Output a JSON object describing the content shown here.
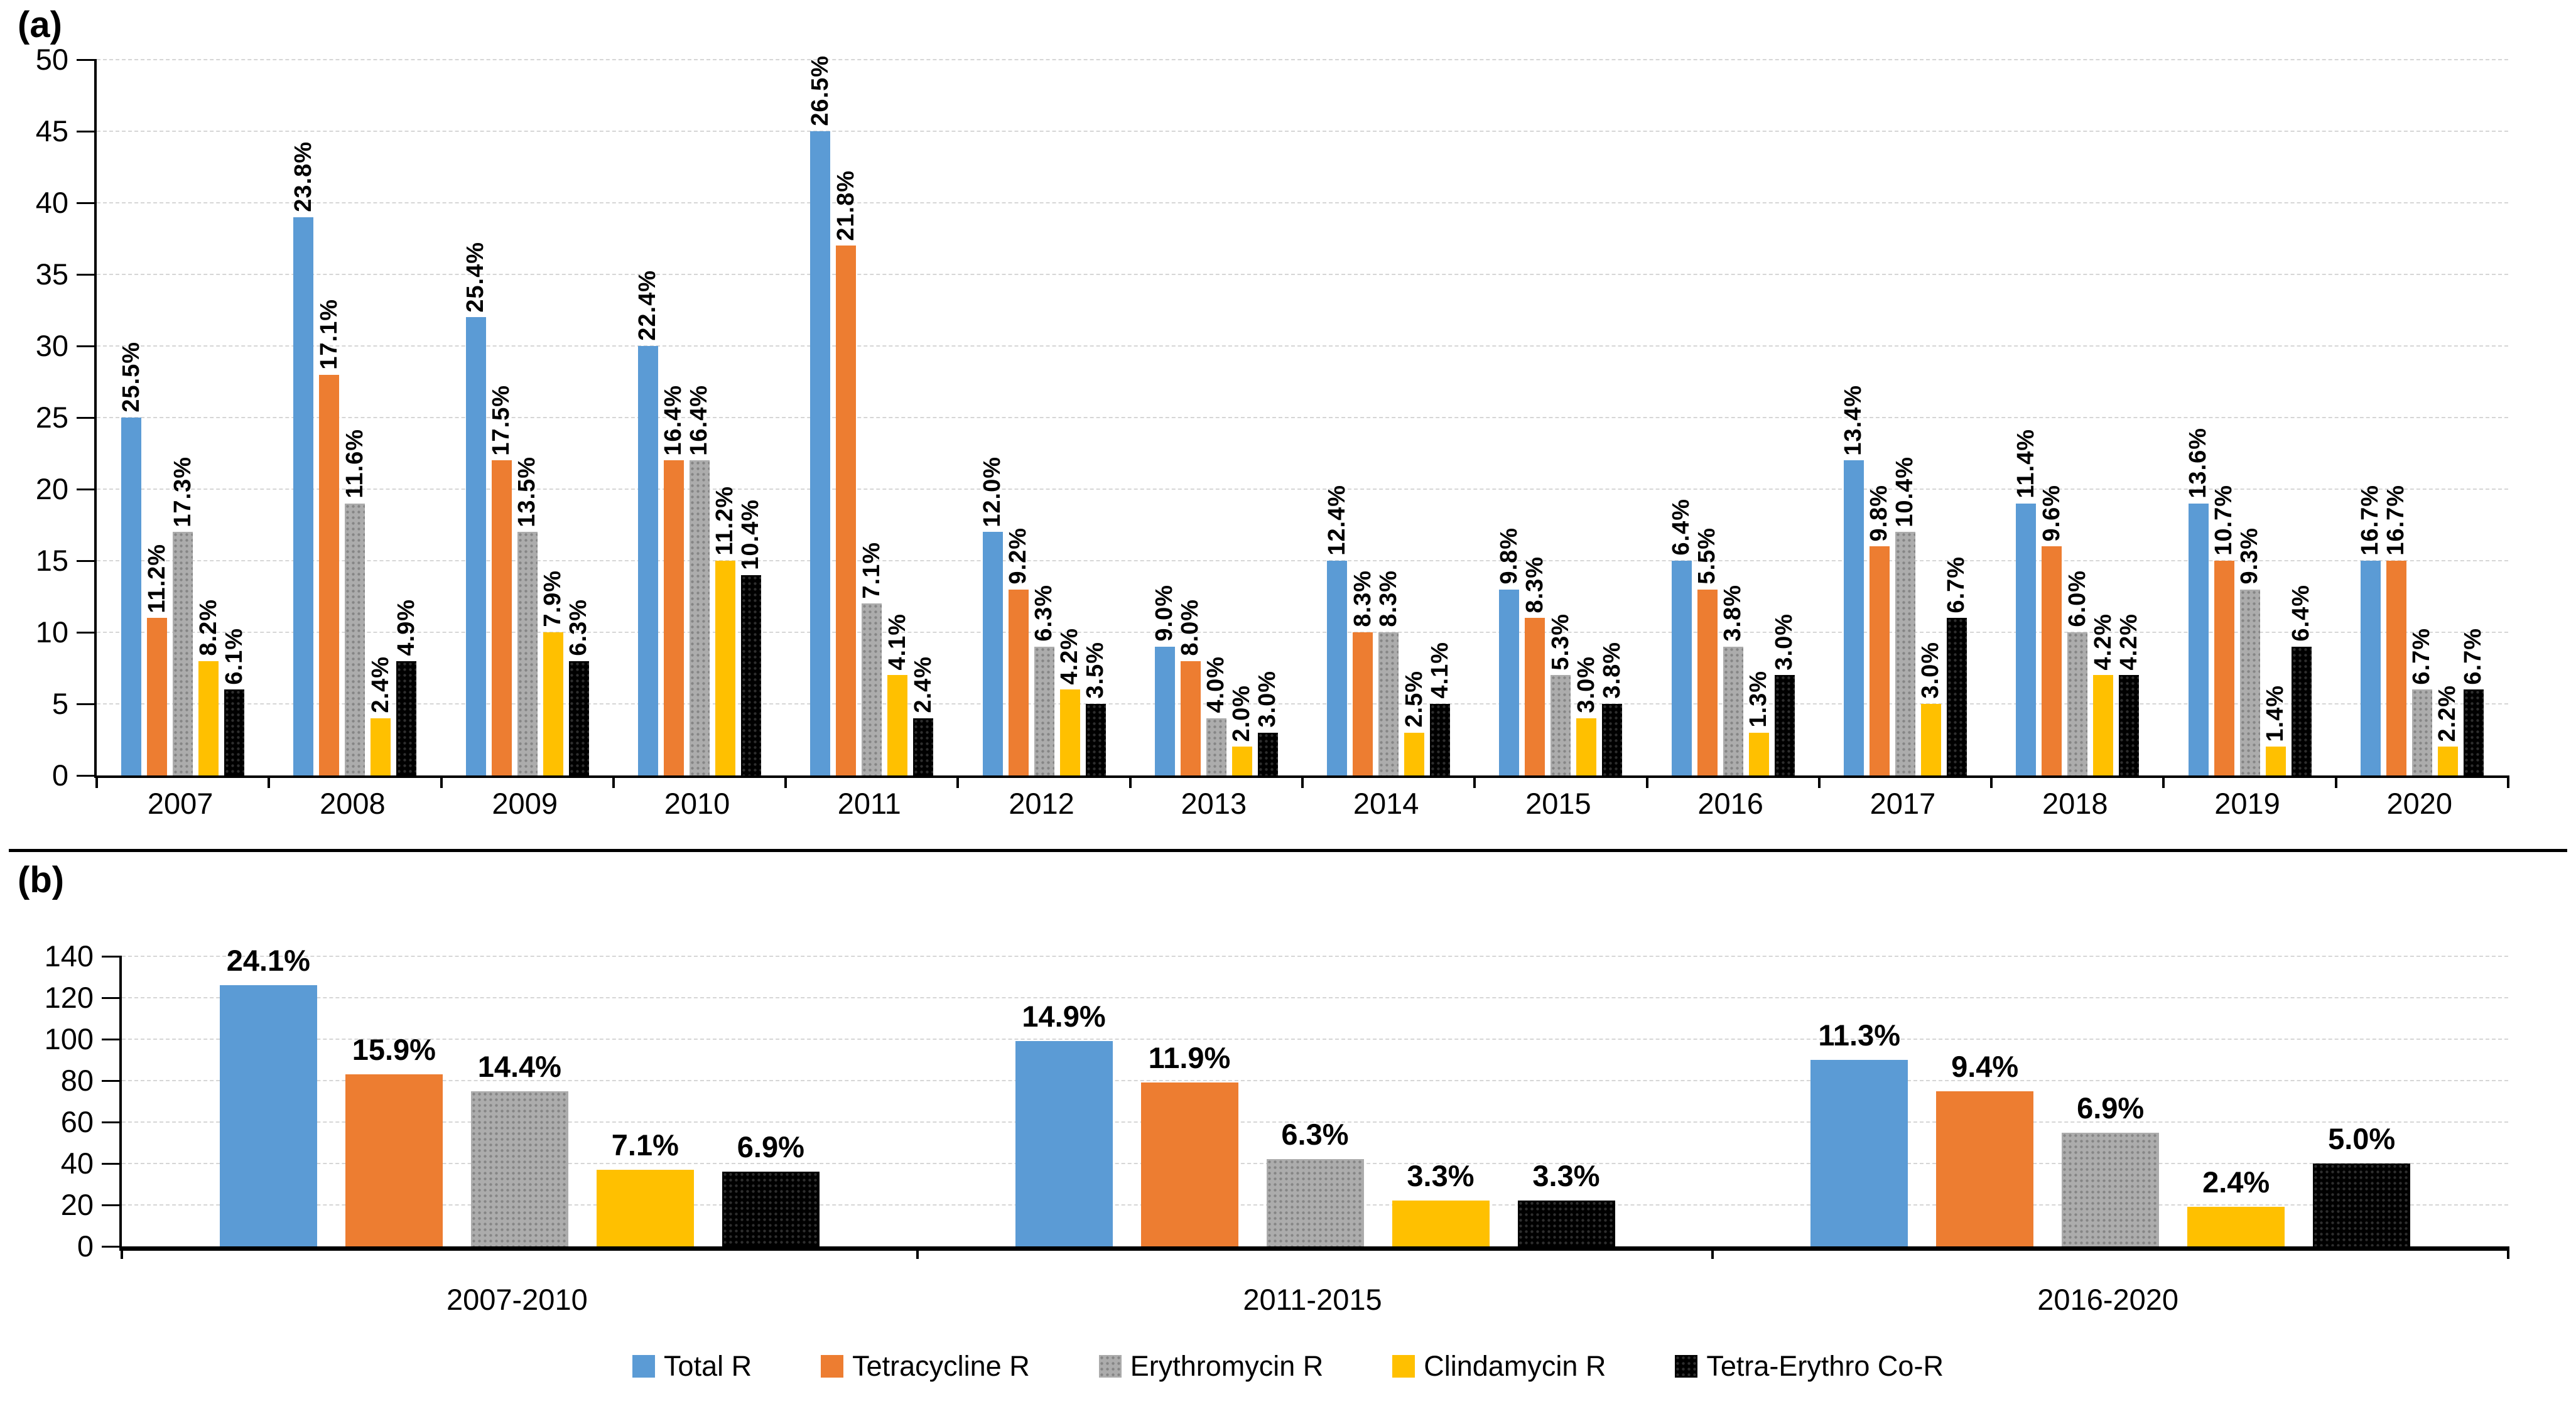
{
  "panels": {
    "a": {
      "tag": "(a)"
    },
    "b": {
      "tag": "(b)"
    }
  },
  "legend": {
    "position": "bottom-center",
    "items": [
      "Total R",
      "Tetracycline R",
      "Erythromycin R",
      "Clindamycin R",
      "Tetra-Erythro Co-R"
    ]
  },
  "colors": {
    "total_r": "#5B9BD5",
    "tetracycline_r": "#ED7D31",
    "erythromycin_r": "#ACACAC",
    "clindamycin_r": "#FFC000",
    "tetra_erythro_co_r": "#000000",
    "gridline": "#D6D6D6",
    "axis": "#000000"
  },
  "chart_data": [
    {
      "type": "bar",
      "panel": "a",
      "title": "",
      "xlabel": "",
      "ylabel": "",
      "grid": true,
      "ylim": [
        0,
        50
      ],
      "yticks": [
        0,
        5,
        10,
        15,
        20,
        25,
        30,
        35,
        40,
        45,
        50
      ],
      "categories": [
        "2007",
        "2008",
        "2009",
        "2010",
        "2011",
        "2012",
        "2013",
        "2014",
        "2015",
        "2016",
        "2017",
        "2018",
        "2019",
        "2020"
      ],
      "value_note": "bar heights are isolate counts; data labels are resistance percentages",
      "series": [
        {
          "name": "Total R",
          "color": "#5B9BD5",
          "fill_pattern": "solid",
          "counts": [
            25,
            39,
            32,
            30,
            45,
            17,
            9,
            15,
            13,
            15,
            22,
            19,
            19,
            15
          ],
          "labels": [
            "25.5%",
            "23.8%",
            "25.4%",
            "22.4%",
            "26.5%",
            "12.0%",
            "9.0%",
            "12.4%",
            "9.8%",
            "6.4%",
            "13.4%",
            "11.4%",
            "13.6%",
            "16.7%"
          ]
        },
        {
          "name": "Tetracycline R",
          "color": "#ED7D31",
          "fill_pattern": "solid",
          "counts": [
            11,
            28,
            22,
            22,
            37,
            13,
            8,
            10,
            11,
            13,
            16,
            16,
            15,
            15
          ],
          "labels": [
            "11.2%",
            "17.1%",
            "17.5%",
            "16.4%",
            "21.8%",
            "9.2%",
            "8.0%",
            "8.3%",
            "8.3%",
            "5.5%",
            "9.8%",
            "9.6%",
            "10.7%",
            "16.7%"
          ]
        },
        {
          "name": "Erythromycin R",
          "color": "#ACACAC",
          "fill_pattern": "dots",
          "counts": [
            17,
            19,
            17,
            22,
            12,
            9,
            4,
            10,
            7,
            9,
            17,
            10,
            13,
            6
          ],
          "labels": [
            "17.3%",
            "11.6%",
            "13.5%",
            "16.4%",
            "7.1%",
            "6.3%",
            "4.0%",
            "8.3%",
            "5.3%",
            "3.8%",
            "10.4%",
            "6.0%",
            "9.3%",
            "6.7%"
          ]
        },
        {
          "name": "Clindamycin R",
          "color": "#FFC000",
          "fill_pattern": "solid",
          "counts": [
            8,
            4,
            10,
            15,
            7,
            6,
            2,
            3,
            4,
            3,
            5,
            7,
            2,
            2
          ],
          "labels": [
            "8.2%",
            "2.4%",
            "7.9%",
            "11.2%",
            "4.1%",
            "4.2%",
            "2.0%",
            "2.5%",
            "3.0%",
            "1.3%",
            "3.0%",
            "4.2%",
            "1.4%",
            "2.2%"
          ]
        },
        {
          "name": "Tetra-Erythro Co-R",
          "color": "#000000",
          "fill_pattern": "dots-dark",
          "counts": [
            6,
            8,
            8,
            14,
            4,
            5,
            3,
            5,
            5,
            7,
            11,
            7,
            9,
            6
          ],
          "labels": [
            "6.1%",
            "4.9%",
            "6.3%",
            "10.4%",
            "2.4%",
            "3.5%",
            "3.0%",
            "4.1%",
            "3.8%",
            "3.0%",
            "6.7%",
            "4.2%",
            "6.4%",
            "6.7%"
          ]
        }
      ]
    },
    {
      "type": "bar",
      "panel": "b",
      "title": "",
      "xlabel": "",
      "ylabel": "",
      "grid": true,
      "ylim": [
        0,
        140
      ],
      "yticks": [
        0,
        20,
        40,
        60,
        80,
        100,
        120,
        140
      ],
      "categories": [
        "2007-2010",
        "2011-2015",
        "2016-2020"
      ],
      "value_note": "bar heights are isolate counts; data labels are resistance percentages",
      "series": [
        {
          "name": "Total R",
          "color": "#5B9BD5",
          "fill_pattern": "solid",
          "counts": [
            126,
            99,
            90
          ],
          "labels": [
            "24.1%",
            "14.9%",
            "11.3%"
          ]
        },
        {
          "name": "Tetracycline R",
          "color": "#ED7D31",
          "fill_pattern": "solid",
          "counts": [
            83,
            79,
            75
          ],
          "labels": [
            "15.9%",
            "11.9%",
            "9.4%"
          ]
        },
        {
          "name": "Erythromycin R",
          "color": "#ACACAC",
          "fill_pattern": "dots",
          "counts": [
            75,
            42,
            55
          ],
          "labels": [
            "14.4%",
            "6.3%",
            "6.9%"
          ]
        },
        {
          "name": "Clindamycin R",
          "color": "#FFC000",
          "fill_pattern": "solid",
          "counts": [
            37,
            22,
            19
          ],
          "labels": [
            "7.1%",
            "3.3%",
            "2.4%"
          ]
        },
        {
          "name": "Tetra-Erythro Co-R",
          "color": "#000000",
          "fill_pattern": "dots-dark",
          "counts": [
            36,
            22,
            40
          ],
          "labels": [
            "6.9%",
            "3.3%",
            "5.0%"
          ]
        }
      ]
    }
  ]
}
